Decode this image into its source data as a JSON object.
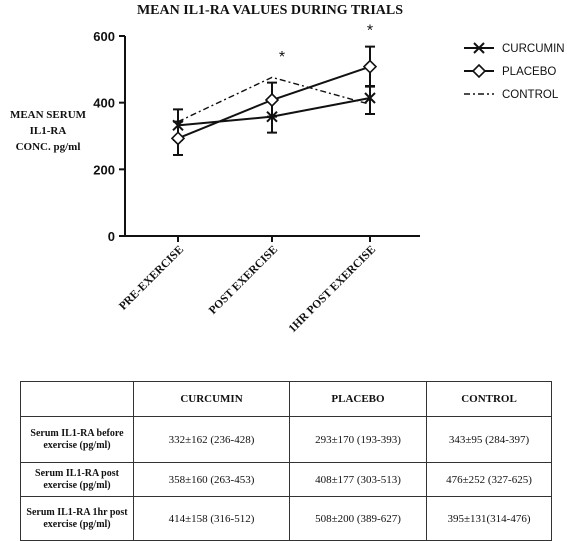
{
  "chart_data": {
    "type": "line",
    "title": "MEAN IL1-RA VALUES DURING TRIALS",
    "ylabel_lines": [
      "MEAN SERUM",
      "IL1-RA",
      "CONC. pg/ml"
    ],
    "xlabel": "",
    "categories": [
      "PRE-EXERCISE",
      "POST EXERCISE",
      "1HR POST EXERCISE"
    ],
    "ylim": [
      0,
      600
    ],
    "yticks": [
      0,
      200,
      400,
      600
    ],
    "series": [
      {
        "name": "CURCUMIN",
        "values": [
          332,
          358,
          414
        ],
        "err_low": [
          288,
          310,
          366
        ],
        "err_high": [
          380,
          408,
          450
        ],
        "marker": "x",
        "line": "solid"
      },
      {
        "name": "PLACEBO",
        "values": [
          293,
          408,
          508
        ],
        "err_low": [
          243,
          358,
          448
        ],
        "err_high": [
          343,
          460,
          568
        ],
        "marker": "diamond",
        "line": "solid"
      },
      {
        "name": "CONTROL",
        "values": [
          343,
          476,
          395
        ],
        "marker": "none",
        "line": "dashdot"
      }
    ],
    "annotations": [
      {
        "category": "POST EXERCISE",
        "text": "*",
        "y": 540
      },
      {
        "category": "1HR POST EXERCISE",
        "text": "*",
        "y": 620
      }
    ],
    "legend_position": "right",
    "grid": false
  },
  "table": {
    "headers": [
      "",
      "CURCUMIN",
      "PLACEBO",
      "CONTROL"
    ],
    "rows": [
      {
        "label": "Serum IL1-RA before exercise (pg/ml)",
        "cells": [
          "332±162 (236-428)",
          "293±170 (193-393)",
          "343±95 (284-397)"
        ]
      },
      {
        "label": "Serum IL1-RA post exercise (pg/ml)",
        "cells": [
          "358±160 (263-453)",
          "408±177 (303-513)",
          "476±252 (327-625)"
        ]
      },
      {
        "label": "Serum IL1-RA 1hr post exercise (pg/ml)",
        "cells": [
          "414±158 (316-512)",
          "508±200 (389-627)",
          "395±131(314-476)"
        ]
      }
    ]
  }
}
